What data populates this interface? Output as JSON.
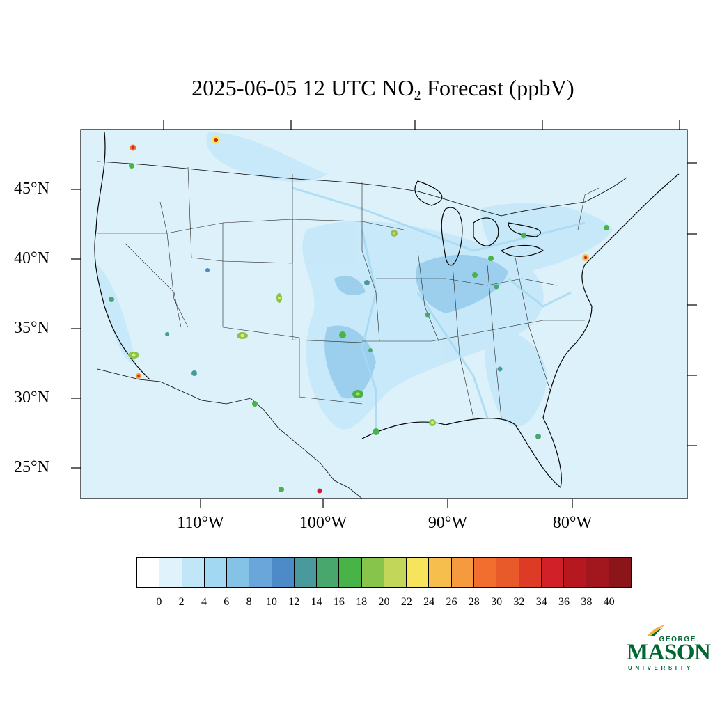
{
  "title": {
    "prefix": "2025-06-05 12 UTC NO",
    "subscript": "2",
    "suffix": " Forecast (ppbV)"
  },
  "map": {
    "region": "Contiguous United States",
    "projection": "Lambert Conformal",
    "background_color": "#ddf1fb",
    "lat_labels": [
      "45°N",
      "40°N",
      "35°N",
      "30°N",
      "25°N"
    ],
    "lon_labels": [
      "110°W",
      "100°W",
      "90°W",
      "80°W"
    ],
    "hotspots": [
      {
        "name": "Vancouver",
        "level": 30
      },
      {
        "name": "Seattle",
        "level": 18
      },
      {
        "name": "Calgary",
        "level": 30
      },
      {
        "name": "San Francisco Bay Area",
        "level": 16
      },
      {
        "name": "Los Angeles",
        "level": 20
      },
      {
        "name": "San Diego / Tijuana",
        "level": 28
      },
      {
        "name": "Las Vegas",
        "level": 14
      },
      {
        "name": "Phoenix",
        "level": 14
      },
      {
        "name": "Salt Lake City",
        "level": 12
      },
      {
        "name": "Denver",
        "level": 20
      },
      {
        "name": "Albuquerque",
        "level": 20
      },
      {
        "name": "El Paso",
        "level": 18
      },
      {
        "name": "Minneapolis",
        "level": 24
      },
      {
        "name": "Kansas City",
        "level": 14
      },
      {
        "name": "Oklahoma City",
        "level": 18
      },
      {
        "name": "Dallas",
        "level": 20
      },
      {
        "name": "Houston",
        "level": 22
      },
      {
        "name": "New Orleans",
        "level": 24
      },
      {
        "name": "St. Louis",
        "level": 16
      },
      {
        "name": "Chicago",
        "level": 20
      },
      {
        "name": "Detroit",
        "level": 18
      },
      {
        "name": "Toronto",
        "level": 18
      },
      {
        "name": "Montreal",
        "level": 18
      },
      {
        "name": "New York City",
        "level": 28
      },
      {
        "name": "Philadelphia",
        "level": 18
      },
      {
        "name": "Atlanta",
        "level": 14
      },
      {
        "name": "Tampa",
        "level": 14
      },
      {
        "name": "Monterrey",
        "level": 14
      },
      {
        "name": "Mexico Gulf coast",
        "level": 34
      }
    ]
  },
  "colorbar": {
    "colors": [
      "#ffffff",
      "#e0f3fc",
      "#c0e6f8",
      "#a3d8f3",
      "#84c2e6",
      "#6ba6da",
      "#4c8ac8",
      "#4a999d",
      "#48a76d",
      "#48b347",
      "#86c44c",
      "#c2d65a",
      "#f6e45c",
      "#f6bf4d",
      "#f59a3f",
      "#f26e2e",
      "#e85a2a",
      "#de3b26",
      "#d12028",
      "#b7171f",
      "#a2171d",
      "#8c1519"
    ],
    "tick_labels": [
      "0",
      "2",
      "4",
      "6",
      "8",
      "10",
      "12",
      "14",
      "16",
      "18",
      "20",
      "22",
      "24",
      "26",
      "28",
      "30",
      "32",
      "34",
      "36",
      "38",
      "40"
    ]
  },
  "logo": {
    "line1": "GEORGE",
    "line2": "MASON",
    "line3": "UNIVERSITY",
    "color": "#006633"
  }
}
